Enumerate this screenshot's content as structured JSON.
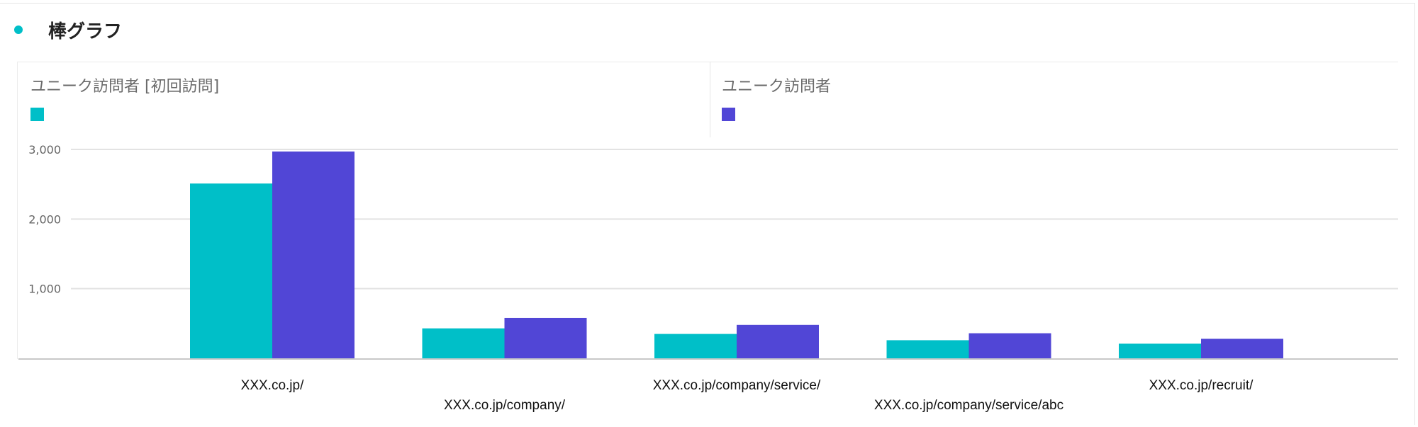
{
  "header": {
    "title": "棒グラフ",
    "accent_color": "#00bfc8"
  },
  "chart_data": {
    "type": "bar",
    "categories": [
      "XXX.co.jp/",
      "XXX.co.jp/company/",
      "XXX.co.jp/company/service/",
      "XXX.co.jp/company/service/abc",
      "XXX.co.jp/recruit/"
    ],
    "series": [
      {
        "name": "ユニーク訪問者 [初回訪問]",
        "color": "#00bfc8",
        "values": [
          2510,
          430,
          350,
          260,
          210
        ]
      },
      {
        "name": "ユニーク訪問者",
        "color": "#5146d6",
        "values": [
          2970,
          580,
          480,
          360,
          280
        ]
      }
    ],
    "yticks": [
      {
        "value": 1000,
        "label": "1,000"
      },
      {
        "value": 2000,
        "label": "2,000"
      },
      {
        "value": 3000,
        "label": "3,000"
      }
    ],
    "ylim": [
      0,
      3000
    ],
    "grid": true,
    "legend_position": "top"
  }
}
